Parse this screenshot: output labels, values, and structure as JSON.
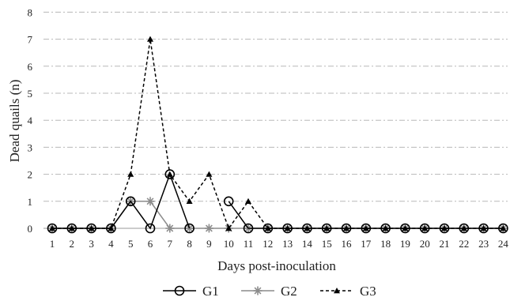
{
  "chart_data": {
    "type": "line",
    "xlabel": "Days post-inoculation",
    "ylabel": "Dead quails  (n)",
    "x": [
      1,
      2,
      3,
      4,
      5,
      6,
      7,
      8,
      9,
      10,
      11,
      12,
      13,
      14,
      15,
      16,
      17,
      18,
      19,
      20,
      21,
      22,
      23,
      24
    ],
    "x_tick_labels": [
      "1",
      "2",
      "3",
      "4",
      "5",
      "6",
      "7",
      "8",
      "9",
      "10",
      "11",
      "12",
      "13",
      "14",
      "15",
      "16",
      "17",
      "18",
      "19",
      "20",
      "21",
      "22",
      "23",
      "24"
    ],
    "ylim": [
      0,
      8
    ],
    "y_ticks": [
      0,
      1,
      2,
      3,
      4,
      5,
      6,
      7,
      8
    ],
    "y_tick_labels": [
      "0",
      "1",
      "2",
      "3",
      "4",
      "5",
      "6",
      "7",
      "8"
    ],
    "grid": "horizontal dash-dot",
    "legend_position": "bottom-center",
    "series": [
      {
        "name": "G1",
        "color": "#000000",
        "style": "solid",
        "marker": "open-circle",
        "values": [
          0,
          0,
          0,
          0,
          1,
          0,
          2,
          0,
          null,
          1,
          0,
          0,
          0,
          0,
          0,
          0,
          0,
          0,
          0,
          0,
          0,
          0,
          0,
          0
        ]
      },
      {
        "name": "G2",
        "color": "#8c8c8c",
        "style": "solid",
        "marker": "asterisk",
        "values": [
          0,
          0,
          0,
          0,
          1,
          1,
          0,
          0,
          0,
          0,
          0,
          0,
          0,
          0,
          0,
          0,
          0,
          0,
          0,
          0,
          0,
          0,
          0,
          0
        ]
      },
      {
        "name": "G3",
        "color": "#000000",
        "style": "dashed",
        "marker": "triangle",
        "values": [
          0,
          0,
          0,
          0,
          2,
          7,
          2,
          1,
          2,
          0,
          1,
          0,
          0,
          0,
          0,
          0,
          0,
          0,
          0,
          0,
          0,
          0,
          0,
          0
        ]
      }
    ]
  }
}
